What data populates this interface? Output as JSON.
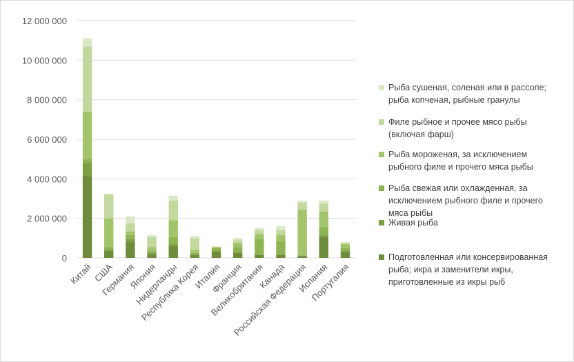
{
  "chart_data": {
    "type": "bar",
    "stacked": true,
    "title": "",
    "xlabel": "",
    "ylabel": "",
    "ylim": [
      0,
      12000000
    ],
    "yticks": [
      0,
      2000000,
      4000000,
      6000000,
      8000000,
      10000000,
      12000000
    ],
    "ytick_labels": [
      "0",
      "2 000 000",
      "4 000 000",
      "6 000 000",
      "8 000 000",
      "10 000 000",
      "12 000 000"
    ],
    "grid": true,
    "legend_position": "right",
    "categories": [
      "Китай",
      "США",
      "Германия",
      "Япония",
      "Нидерланды",
      "Республика Корея",
      "Италия",
      "Франция",
      "Великобритания",
      "Канада",
      "Российская Федерация",
      "Испания",
      "Португалия"
    ],
    "series": [
      {
        "name": "Подготовленная или консервированная рыба; икра и заменители икры, приготовленные из икры рыб",
        "legend_lines": [
          "Подготовленная или консервированная",
          "рыба; икра и заменители икры,",
          "приготовленные из икры рыб"
        ],
        "color": "#6f8b3c",
        "values": [
          4150000,
          350000,
          800000,
          200000,
          600000,
          150000,
          300000,
          250000,
          150000,
          150000,
          100000,
          1050000,
          300000
        ]
      },
      {
        "name": "Живая рыба",
        "legend_lines": [
          "Живая рыба"
        ],
        "color": "#7e9e45",
        "values": [
          650000,
          50000,
          150000,
          50000,
          100000,
          50000,
          50000,
          50000,
          50000,
          50000,
          10000,
          100000,
          50000
        ]
      },
      {
        "name": "Рыба свежая или охлажденная, за исключением рыбного филе и прочего мяса рыбы",
        "legend_lines": [
          "Рыба свежая или охлажденная, за",
          "исключением рыбного филе и прочего",
          "мяса рыбы"
        ],
        "color": "#8db451",
        "values": [
          200000,
          150000,
          200000,
          100000,
          350000,
          50000,
          150000,
          250000,
          750000,
          650000,
          30000,
          400000,
          150000
        ]
      },
      {
        "name": "Рыба мороженая, за исключением рыбного филе и прочего мяса рыбы",
        "legend_lines": [
          "Рыба мороженая, за исключением",
          "рыбного филе и прочего мяса рыбы"
        ],
        "color": "#a4c46c",
        "values": [
          2400000,
          1450000,
          200000,
          200000,
          850000,
          150000,
          50000,
          200000,
          250000,
          300000,
          2300000,
          800000,
          200000
        ]
      },
      {
        "name": "Филе рыбное и прочее мясо рыбы (включая фарш)",
        "legend_lines": [
          "Филе рыбное и прочее мясо рыбы",
          "(включая фарш)"
        ],
        "color": "#c3d89d",
        "values": [
          3300000,
          1200000,
          400000,
          500000,
          1000000,
          600000,
          20000,
          150000,
          200000,
          250000,
          350000,
          400000,
          60000
        ]
      },
      {
        "name": "Рыба сушеная, соленая или в рассоле; рыба копченая, рыбные гранулы",
        "legend_lines": [
          "Рыба сушеная, соленая или в рассоле;",
          "рыба копченая, рыбные гранулы"
        ],
        "color": "#dbe8c6",
        "values": [
          400000,
          50000,
          350000,
          100000,
          250000,
          100000,
          10000,
          100000,
          100000,
          200000,
          100000,
          150000,
          40000
        ]
      }
    ],
    "legend_order": [
      5,
      4,
      3,
      2,
      1,
      0
    ]
  }
}
